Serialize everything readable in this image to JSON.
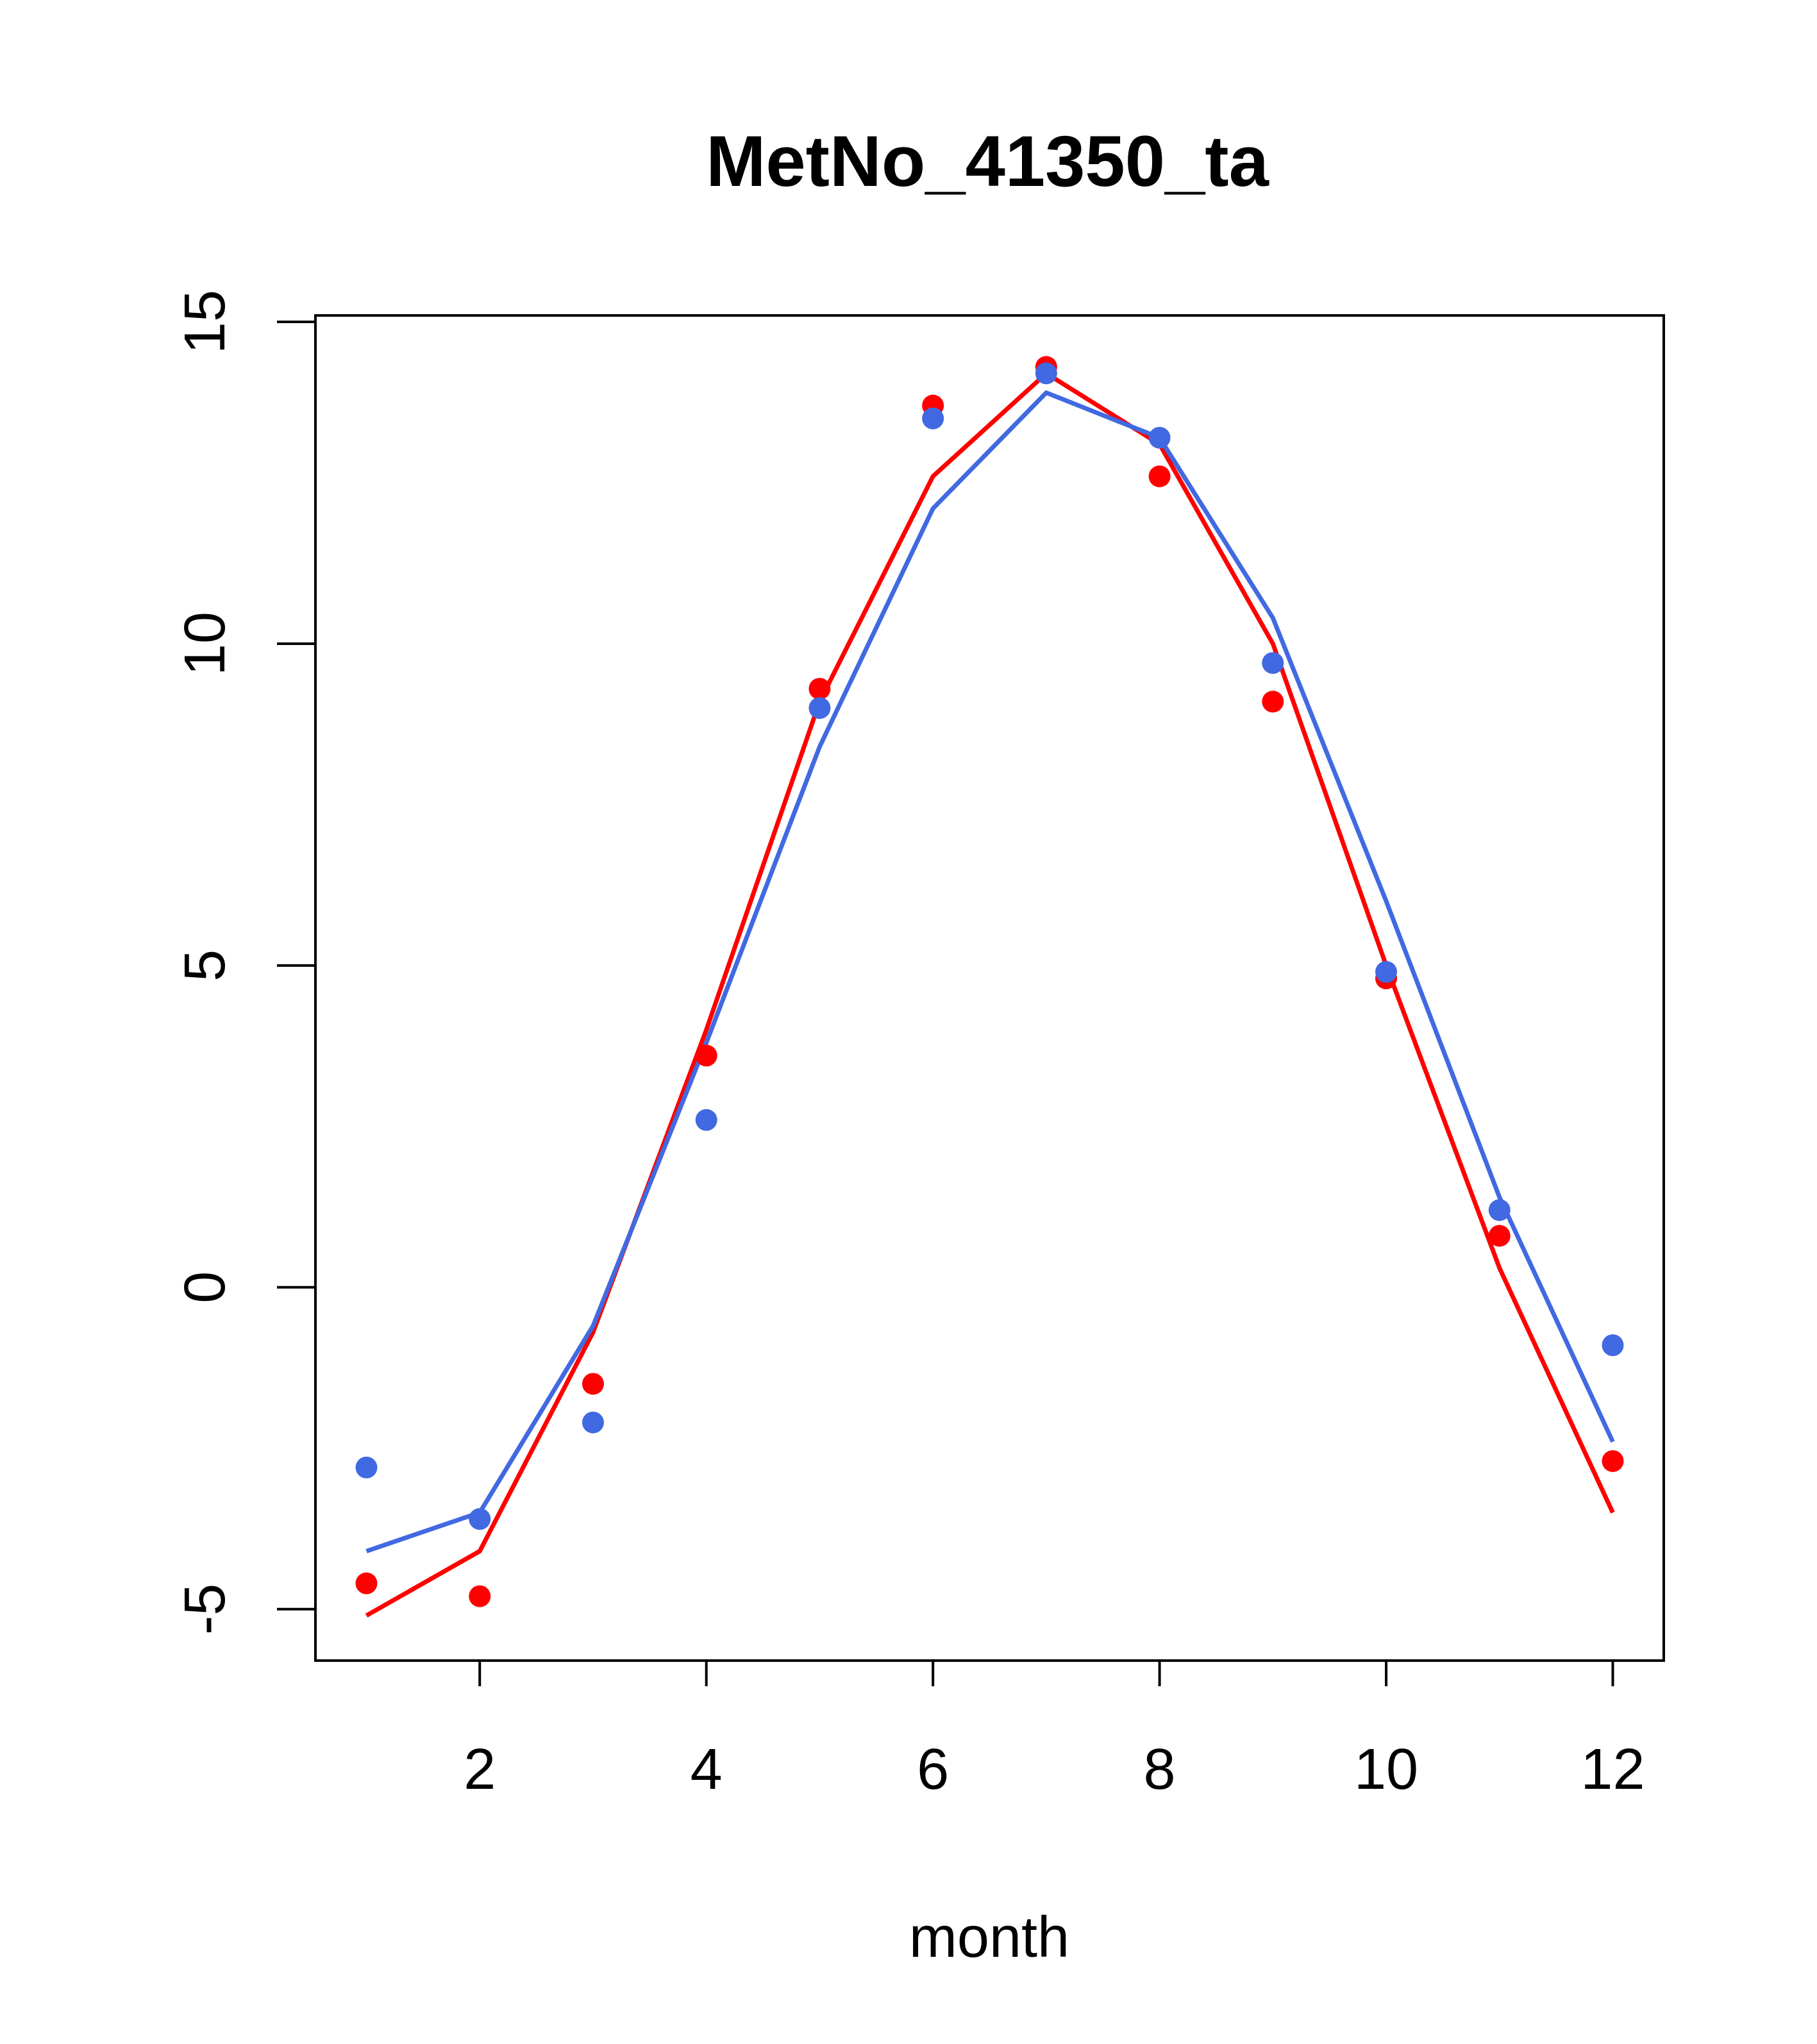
{
  "chart_data": {
    "type": "scatter",
    "title": "MetNo_41350_ta",
    "xlabel": "month",
    "ylabel": "",
    "xlim": [
      0.55,
      12.45
    ],
    "ylim": [
      -5.8,
      15.1
    ],
    "xticks": [
      2,
      4,
      6,
      8,
      10,
      12
    ],
    "yticks": [
      -5,
      0,
      5,
      10,
      15
    ],
    "grid": false,
    "legend": "none",
    "series": [
      {
        "color": "#FF0000",
        "x": [
          1,
          2,
          3,
          4,
          5,
          6,
          7,
          8,
          9,
          10,
          11,
          12
        ],
        "points": [
          -4.6,
          -4.8,
          -1.5,
          3.6,
          9.3,
          13.7,
          14.3,
          12.6,
          9.1,
          4.8,
          0.8,
          -2.7
        ],
        "line": [
          -5.1,
          -4.1,
          -0.7,
          4.0,
          9.1,
          12.6,
          14.2,
          13.1,
          10.0,
          5.0,
          0.3,
          -3.5
        ]
      },
      {
        "color": "#4169E1",
        "x": [
          1,
          2,
          3,
          4,
          5,
          6,
          7,
          8,
          9,
          10,
          11,
          12
        ],
        "points": [
          -2.8,
          -3.6,
          -2.1,
          2.6,
          9.0,
          13.5,
          14.2,
          13.2,
          9.7,
          4.9,
          1.2,
          -0.9
        ],
        "line": [
          -4.1,
          -3.5,
          -0.6,
          3.8,
          8.4,
          12.1,
          13.9,
          13.2,
          10.4,
          6.0,
          1.4,
          -2.4
        ]
      }
    ]
  }
}
